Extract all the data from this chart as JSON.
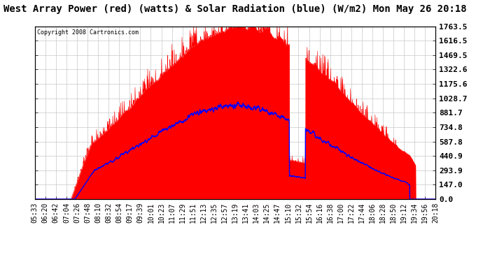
{
  "title": "West Array Power (red) (watts) & Solar Radiation (blue) (W/m2) Mon May 26 20:18",
  "copyright": "Copyright 2008 Cartronics.com",
  "yticks": [
    0.0,
    147.0,
    293.9,
    440.9,
    587.8,
    734.8,
    881.7,
    1028.7,
    1175.6,
    1322.6,
    1469.5,
    1616.5,
    1763.5
  ],
  "ymax": 1763.5,
  "xtick_labels": [
    "05:33",
    "06:20",
    "06:42",
    "07:04",
    "07:26",
    "07:48",
    "08:10",
    "08:32",
    "08:54",
    "09:17",
    "09:39",
    "10:01",
    "10:23",
    "11:07",
    "11:29",
    "11:51",
    "12:13",
    "12:35",
    "12:57",
    "13:19",
    "13:41",
    "14:03",
    "14:25",
    "14:47",
    "15:10",
    "15:32",
    "15:54",
    "16:16",
    "16:38",
    "17:00",
    "17:22",
    "17:44",
    "18:06",
    "18:28",
    "18:50",
    "19:12",
    "19:34",
    "19:56",
    "20:18"
  ],
  "bg_color": "#ffffff",
  "plot_bg_color": "#ffffff",
  "grid_color": "#c8c8c8",
  "red_color": "#ff0000",
  "blue_color": "#0000ff",
  "title_fontsize": 10,
  "tick_fontsize": 7,
  "yticklabel_fontsize": 8
}
